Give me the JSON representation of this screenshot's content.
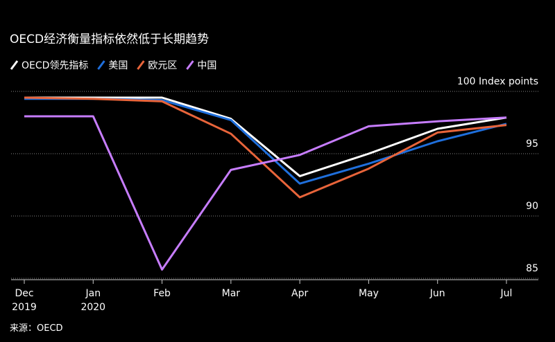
{
  "chart_data": {
    "type": "line",
    "title": "OECD经济衡量指标依然低于长期趋势",
    "source": "来源：OECD",
    "categories": [
      "Dec\n2019",
      "Jan\n2020",
      "Feb",
      "Mar",
      "Apr",
      "May",
      "Jun",
      "Jul"
    ],
    "series": [
      {
        "name": "OECD领先指标",
        "color": "#ffffff",
        "values": [
          99.5,
          99.5,
          99.5,
          97.8,
          93.2,
          95.0,
          97.0,
          97.9
        ]
      },
      {
        "name": "美国",
        "color": "#1f6fdc",
        "values": [
          99.4,
          99.4,
          99.3,
          97.7,
          92.6,
          94.2,
          96.0,
          97.4
        ]
      },
      {
        "name": "欧元区",
        "color": "#e8643a",
        "values": [
          99.5,
          99.4,
          99.2,
          96.6,
          91.5,
          93.8,
          96.7,
          97.3
        ]
      },
      {
        "name": "中国",
        "color": "#c77dff",
        "values": [
          98.0,
          98.0,
          85.7,
          93.7,
          94.9,
          97.2,
          97.6,
          97.9
        ]
      }
    ],
    "ylim": [
      85,
      100
    ],
    "yticks": [
      85,
      90,
      95,
      {
        "value": 100,
        "label": "100 Index points"
      }
    ],
    "grid": true
  }
}
